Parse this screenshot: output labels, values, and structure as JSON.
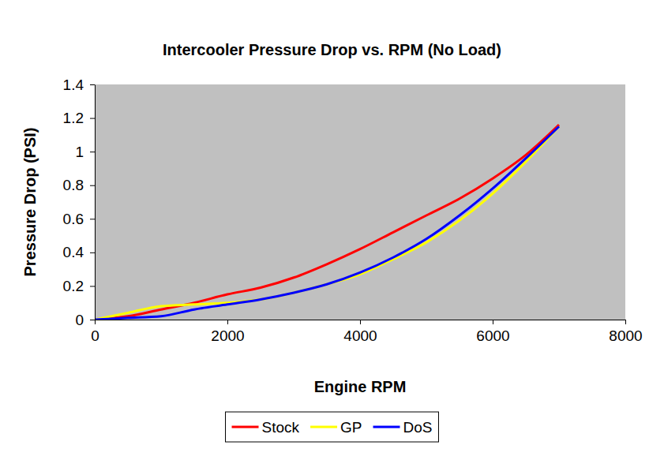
{
  "chart_data": {
    "type": "line",
    "title": "Intercooler Pressure Drop vs. RPM (No Load)",
    "x_label": "Engine RPM",
    "y_label": "Pressure Drop (PSI)",
    "x": [
      0,
      500,
      1000,
      1500,
      2000,
      2500,
      3000,
      3500,
      4000,
      4500,
      5000,
      5500,
      6000,
      6500,
      7000
    ],
    "series": [
      {
        "name": "Stock",
        "color": "#ff0000",
        "values": [
          0,
          0.02,
          0.06,
          0.1,
          0.15,
          0.19,
          0.25,
          0.33,
          0.42,
          0.52,
          0.62,
          0.72,
          0.84,
          0.98,
          1.16
        ]
      },
      {
        "name": "GP",
        "color": "#ffff00",
        "values": [
          0,
          0.04,
          0.08,
          0.09,
          0.1,
          0.12,
          0.16,
          0.21,
          0.27,
          0.36,
          0.46,
          0.59,
          0.75,
          0.94,
          1.15
        ]
      },
      {
        "name": "DoS",
        "color": "#0000ff",
        "values": [
          0,
          0.01,
          0.02,
          0.06,
          0.09,
          0.12,
          0.16,
          0.21,
          0.28,
          0.37,
          0.48,
          0.62,
          0.78,
          0.96,
          1.15
        ]
      }
    ],
    "xlim": [
      0,
      8000
    ],
    "xticks": [
      0,
      2000,
      4000,
      6000,
      8000
    ],
    "ylim": [
      0,
      1.4
    ],
    "yticks": [
      0,
      0.2,
      0.4,
      0.6,
      0.8,
      1,
      1.2,
      1.4
    ],
    "grid": false,
    "legend": "bottom"
  }
}
